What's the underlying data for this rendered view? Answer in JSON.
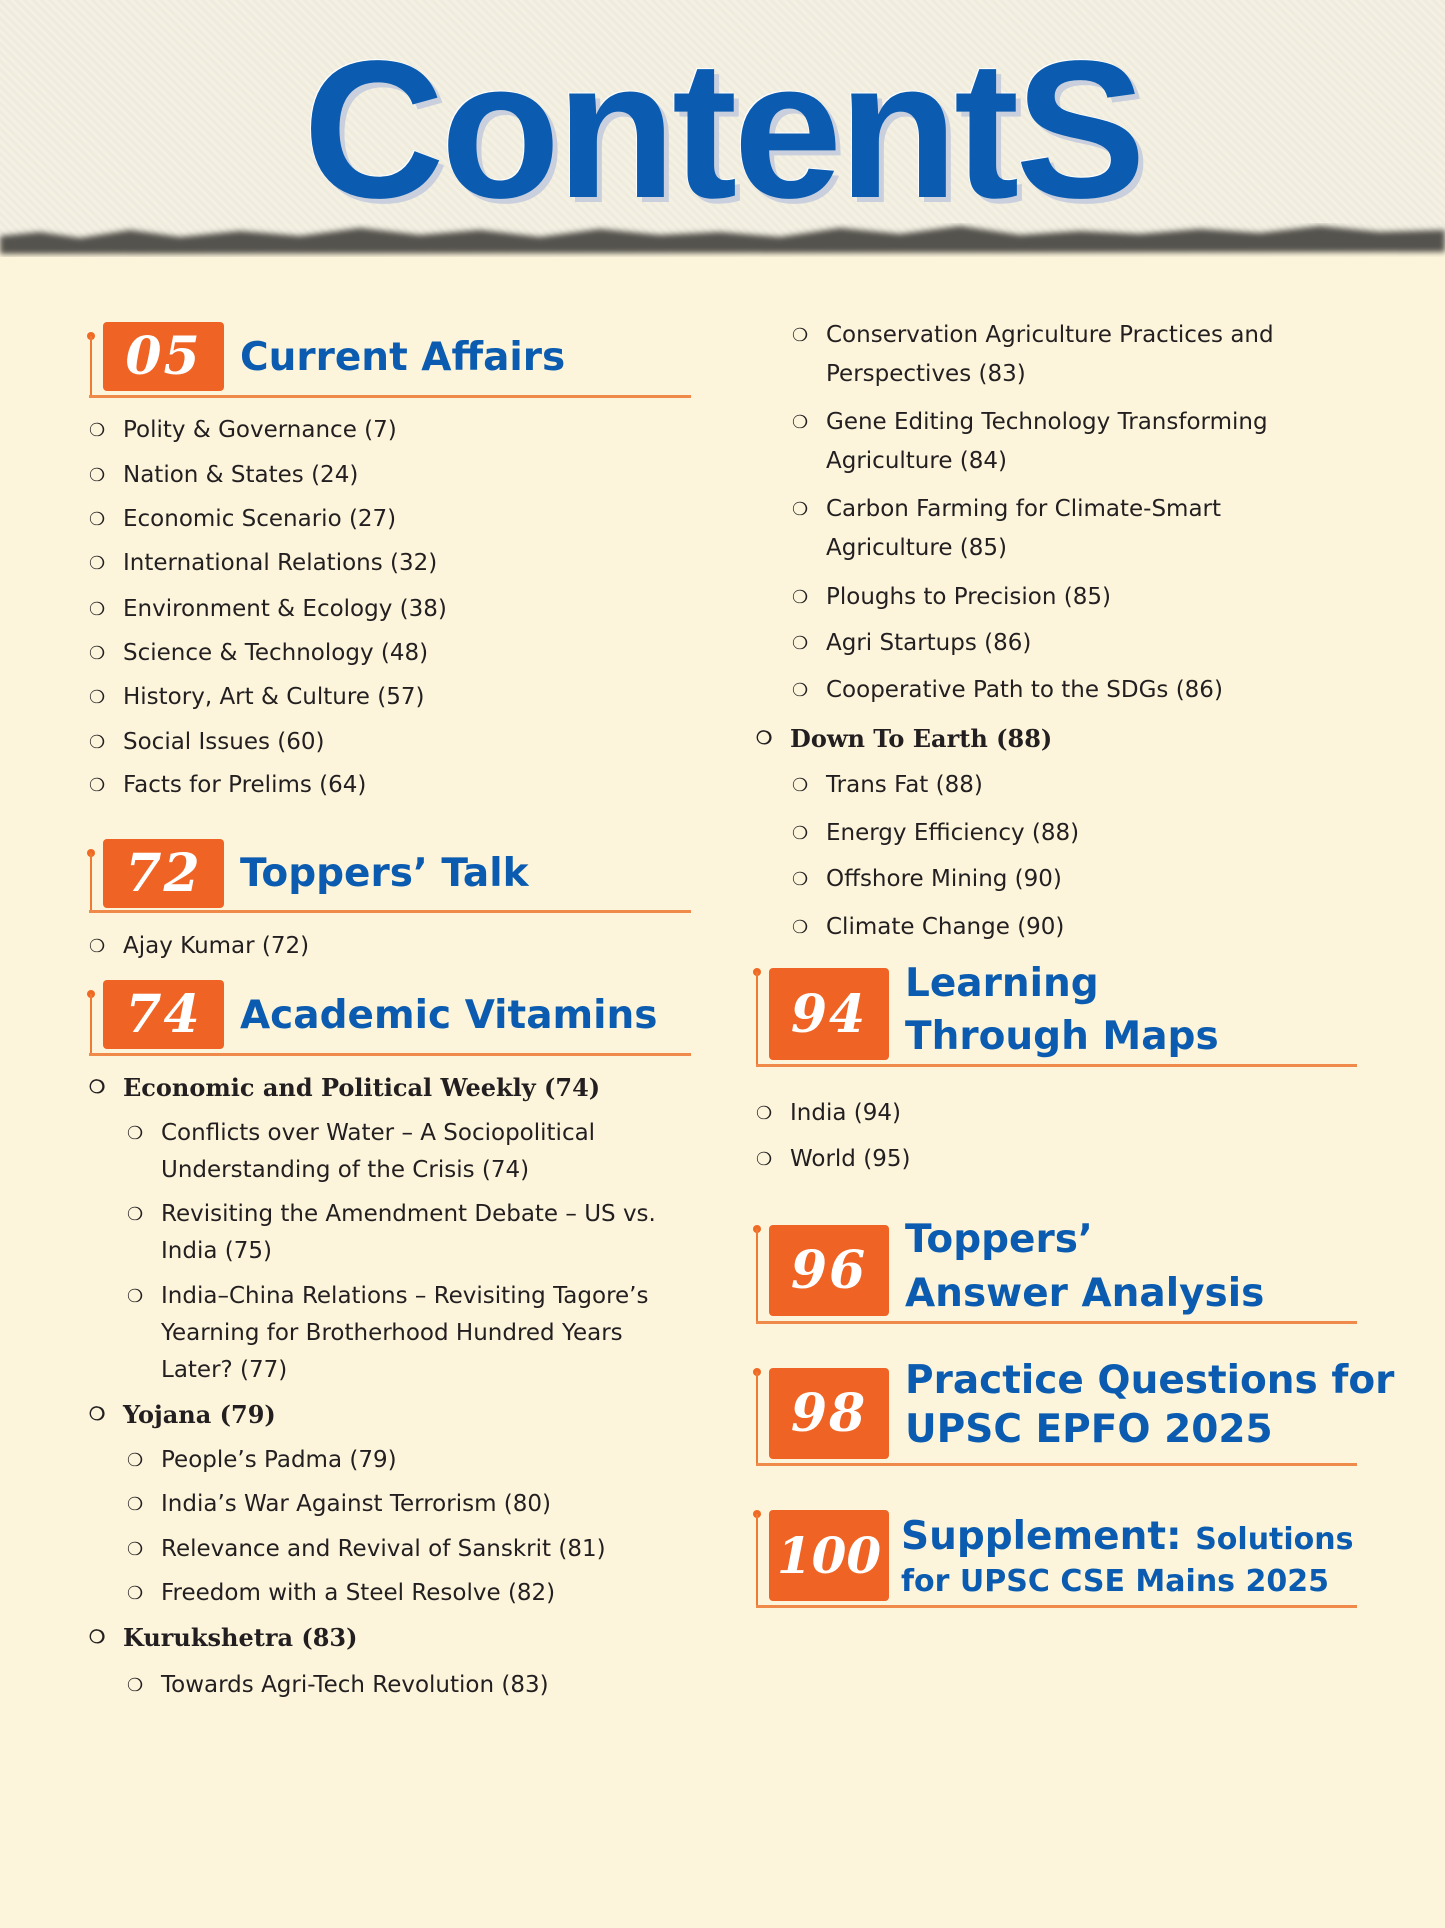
{
  "title": "ContentS",
  "bullet": "❍",
  "accent": "#ef6424",
  "title_color": "#0b5cb0",
  "sections": {
    "current_affairs": {
      "num": "05",
      "title": "Current Affairs",
      "items": [
        "Polity & Governance (7)",
        "Nation & States (24)",
        "Economic Scenario (27)",
        "International Relations (32)",
        "Environment & Ecology (38)",
        "Science & Technology (48)",
        "History, Art & Culture (57)",
        "Social Issues (60)",
        "Facts for Prelims (64)"
      ]
    },
    "toppers_talk": {
      "num": "72",
      "title": "Toppers’ Talk",
      "items": [
        "Ajay Kumar (72)"
      ]
    },
    "academic_vitamins": {
      "num": "74",
      "title": "Academic Vitamins",
      "epw": {
        "label": "Economic and Political Weekly (74)",
        "items": [
          [
            "Conflicts over Water – A Sociopolitical",
            "Understanding of the Crisis (74)"
          ],
          [
            "Revisiting the Amendment Debate – US vs.",
            "India (75)"
          ],
          [
            "India–China Relations – Revisiting Tagore’s",
            "Yearning for Brotherhood Hundred Years",
            "Later? (77)"
          ]
        ]
      },
      "yojana": {
        "label": "Yojana (79)",
        "items": [
          "People’s Padma (79)",
          "India’s War Against Terrorism (80)",
          "Relevance and Revival of Sanskrit (81)",
          "Freedom with a Steel Resolve (82)"
        ]
      },
      "kurukshetra": {
        "label": "Kurukshetra (83)",
        "items": [
          [
            "Towards Agri-Tech Revolution (83)"
          ],
          [
            "Conservation Agriculture Practices and",
            "Perspectives (83)"
          ],
          [
            "Gene Editing Technology Transforming",
            "Agriculture (84)"
          ],
          [
            "Carbon Farming for Climate-Smart",
            "Agriculture (85)"
          ],
          [
            "Ploughs to Precision (85)"
          ],
          [
            "Agri Startups (86)"
          ],
          [
            "Cooperative Path to the SDGs (86)"
          ]
        ]
      },
      "down_to_earth": {
        "label": "Down To Earth (88)",
        "items": [
          "Trans Fat (88)",
          "Energy Efficiency (88)",
          "Offshore Mining (90)",
          "Climate Change (90)"
        ]
      }
    },
    "maps": {
      "num": "94",
      "title_lines": [
        "Learning",
        "Through Maps"
      ],
      "items": [
        "India (94)",
        "World (95)"
      ]
    },
    "answer_analysis": {
      "num": "96",
      "title_lines": [
        "Toppers’",
        "Answer Analysis"
      ]
    },
    "practice": {
      "num": "98",
      "title_lines": [
        "Practice Questions for",
        "UPSC EPFO 2025"
      ]
    },
    "supplement": {
      "num": "100",
      "title_main": "Supplement:",
      "title_small": "Solutions",
      "title_line2": "for UPSC CSE Mains 2025"
    }
  }
}
